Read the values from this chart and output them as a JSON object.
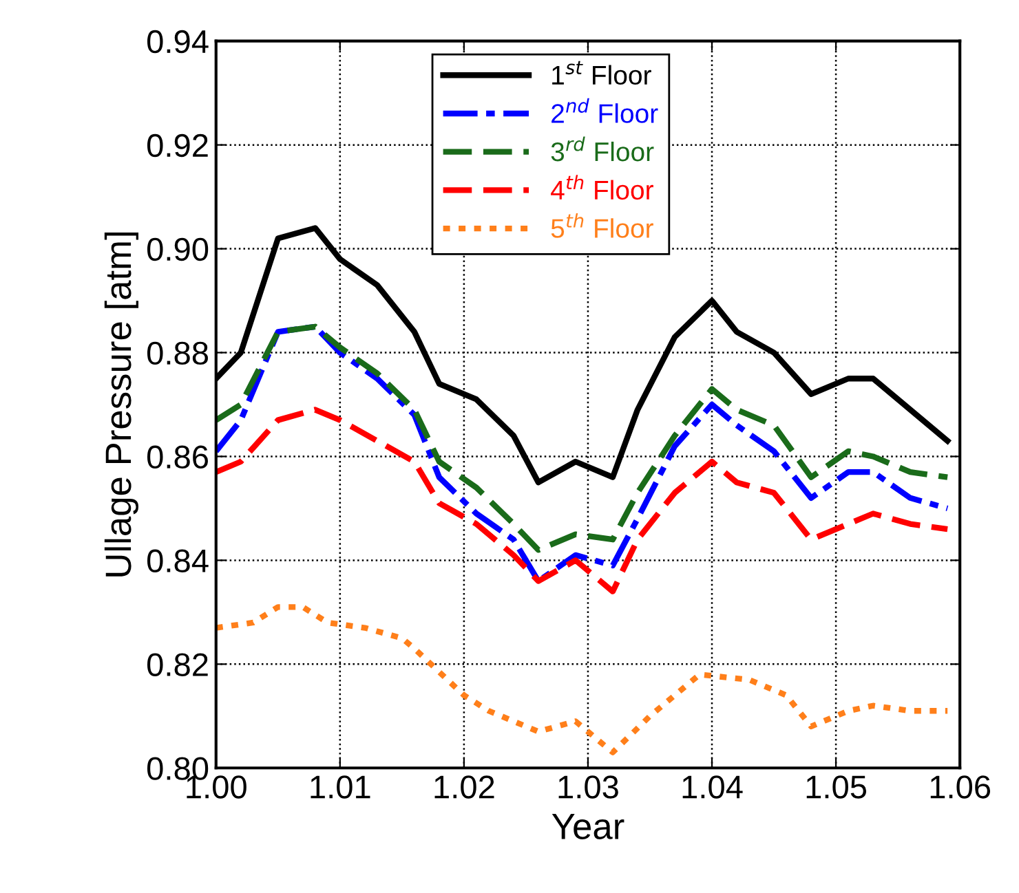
{
  "chart_data": {
    "type": "line",
    "xlabel": "Year",
    "ylabel": "Ullage Pressure [atm]",
    "x": [
      1.0,
      1.002,
      1.005,
      1.008,
      1.01,
      1.013,
      1.016,
      1.018,
      1.021,
      1.024,
      1.026,
      1.029,
      1.032,
      1.034,
      1.037,
      1.04,
      1.042,
      1.045,
      1.048,
      1.051,
      1.053,
      1.056,
      1.059
    ],
    "series": [
      {
        "name": "1$^{st}$ Floor",
        "color": "#000000",
        "line_style": "solid",
        "values": [
          0.875,
          0.88,
          0.902,
          0.904,
          0.898,
          0.893,
          0.884,
          0.874,
          0.871,
          0.864,
          0.855,
          0.859,
          0.856,
          0.869,
          0.883,
          0.89,
          0.884,
          0.88,
          0.872,
          0.875,
          0.875,
          0.869,
          0.863
        ]
      },
      {
        "name": "2$^{nd}$ Floor",
        "color": "#0000ff",
        "line_style": "dashdot",
        "values": [
          0.861,
          0.867,
          0.884,
          0.885,
          0.88,
          0.875,
          0.868,
          0.856,
          0.849,
          0.844,
          0.836,
          0.841,
          0.839,
          0.848,
          0.862,
          0.87,
          0.866,
          0.861,
          0.852,
          0.857,
          0.857,
          0.852,
          0.85
        ]
      },
      {
        "name": "3$^{rd}$ Floor",
        "color": "#1a6b1a",
        "line_style": "dashed",
        "values": [
          0.867,
          0.87,
          0.884,
          0.885,
          0.881,
          0.876,
          0.869,
          0.859,
          0.854,
          0.847,
          0.842,
          0.845,
          0.844,
          0.853,
          0.864,
          0.873,
          0.869,
          0.866,
          0.856,
          0.861,
          0.86,
          0.857,
          0.856
        ]
      },
      {
        "name": "4$^{th}$ Floor",
        "color": "#ff0000",
        "line_style": "dashed",
        "values": [
          0.857,
          0.859,
          0.867,
          0.869,
          0.867,
          0.863,
          0.859,
          0.851,
          0.847,
          0.841,
          0.836,
          0.84,
          0.834,
          0.844,
          0.853,
          0.859,
          0.855,
          0.853,
          0.844,
          0.847,
          0.849,
          0.847,
          0.846
        ]
      },
      {
        "name": "5$^{th}$ Floor",
        "color": "#ff7f1a",
        "line_style": "dotted",
        "x": [
          1.0,
          1.003,
          1.005,
          1.007,
          1.009,
          1.012,
          1.015,
          1.016,
          1.02,
          1.022,
          1.026,
          1.029,
          1.032,
          1.035,
          1.039,
          1.043,
          1.046,
          1.048,
          1.051,
          1.053,
          1.056,
          1.059
        ],
        "values": [
          0.827,
          0.828,
          0.831,
          0.831,
          0.828,
          0.827,
          0.825,
          0.823,
          0.814,
          0.811,
          0.807,
          0.809,
          0.803,
          0.81,
          0.818,
          0.817,
          0.814,
          0.808,
          0.811,
          0.812,
          0.811,
          0.811
        ]
      }
    ],
    "xlim": [
      1.0,
      1.06
    ],
    "ylim": [
      0.8,
      0.94
    ],
    "xticks": [
      {
        "value": 1.0,
        "label": "1.00"
      },
      {
        "value": 1.01,
        "label": "1.01"
      },
      {
        "value": 1.02,
        "label": "1.02"
      },
      {
        "value": 1.03,
        "label": "1.03"
      },
      {
        "value": 1.04,
        "label": "1.04"
      },
      {
        "value": 1.05,
        "label": "1.05"
      },
      {
        "value": 1.06,
        "label": "1.06"
      }
    ],
    "yticks": [
      {
        "value": 0.8,
        "label": "0.80"
      },
      {
        "value": 0.82,
        "label": "0.82"
      },
      {
        "value": 0.84,
        "label": "0.84"
      },
      {
        "value": 0.86,
        "label": "0.86"
      },
      {
        "value": 0.88,
        "label": "0.88"
      },
      {
        "value": 0.9,
        "label": "0.90"
      },
      {
        "value": 0.92,
        "label": "0.92"
      },
      {
        "value": 0.94,
        "label": "0.94"
      }
    ],
    "grid": true,
    "legend": "top"
  }
}
